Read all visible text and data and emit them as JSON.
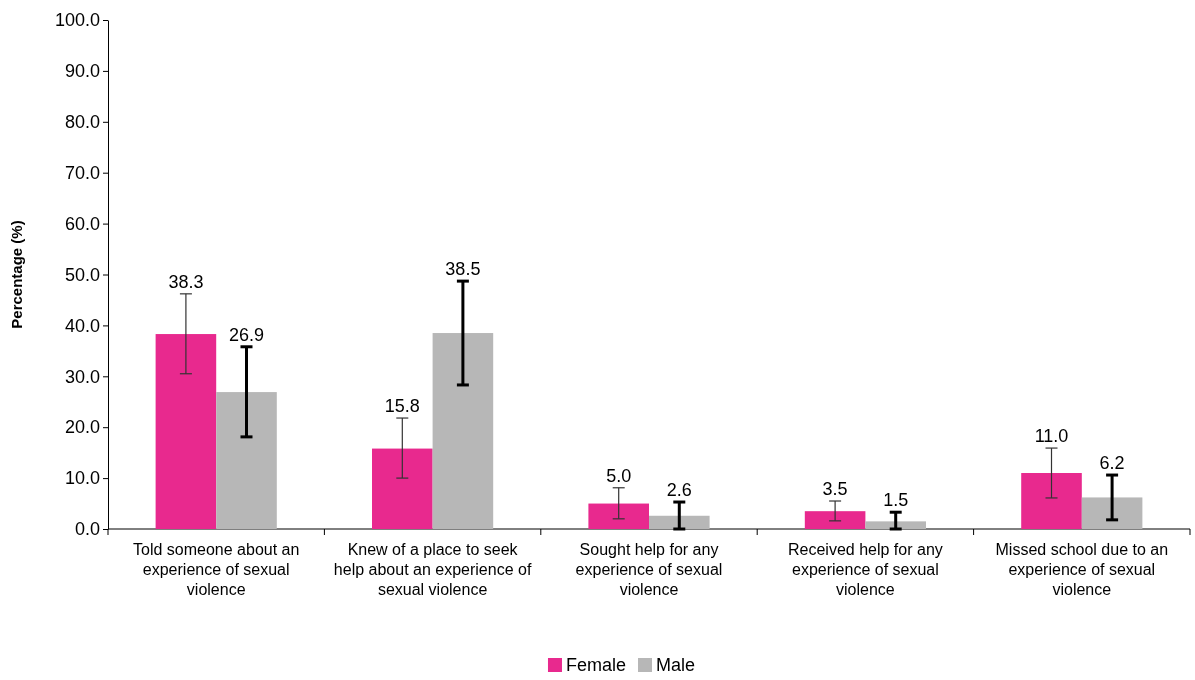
{
  "chart_data": {
    "type": "bar",
    "ylabel": "Percentage (%)",
    "categories": [
      "Told someone about an experience of sexual violence",
      "Knew of a place to seek help about an experience of sexual violence",
      "Sought help for any experience of sexual violence",
      "Received help for any experience of sexual violence",
      "Missed school due to an experience of sexual violence"
    ],
    "series": [
      {
        "name": "Female",
        "color": "#e8298e",
        "values": [
          38.3,
          15.8,
          5.0,
          3.5,
          11.0
        ],
        "errors": [
          [
            30.5,
            46.2
          ],
          [
            10.0,
            21.8
          ],
          [
            2.0,
            8.1
          ],
          [
            1.6,
            5.5
          ],
          [
            6.1,
            15.9
          ]
        ],
        "value_labels": [
          "38.3",
          "15.8",
          "5.0",
          "3.5",
          "11.0"
        ]
      },
      {
        "name": "Male",
        "color": "#b7b7b7",
        "values": [
          26.9,
          38.5,
          2.6,
          1.5,
          6.2
        ],
        "errors": [
          [
            18.1,
            35.8
          ],
          [
            28.3,
            48.7
          ],
          [
            0.0,
            5.3
          ],
          [
            0.0,
            3.3
          ],
          [
            1.8,
            10.6
          ]
        ],
        "value_labels": [
          "26.9",
          "38.5",
          "2.6",
          "1.5",
          "6.2"
        ]
      }
    ],
    "ylim": [
      0,
      100
    ],
    "yticks": [
      {
        "value": 0,
        "label": "0.0"
      },
      {
        "value": 10,
        "label": "10.0"
      },
      {
        "value": 20,
        "label": "20.0"
      },
      {
        "value": 30,
        "label": "30.0"
      },
      {
        "value": 40,
        "label": "40.0"
      },
      {
        "value": 50,
        "label": "50.0"
      },
      {
        "value": 60,
        "label": "60.0"
      },
      {
        "value": 70,
        "label": "70.0"
      },
      {
        "value": 80,
        "label": "80.0"
      },
      {
        "value": 90,
        "label": "90.0"
      },
      {
        "value": 100,
        "label": "100.0"
      }
    ],
    "grid": false,
    "legend": "bottom"
  }
}
